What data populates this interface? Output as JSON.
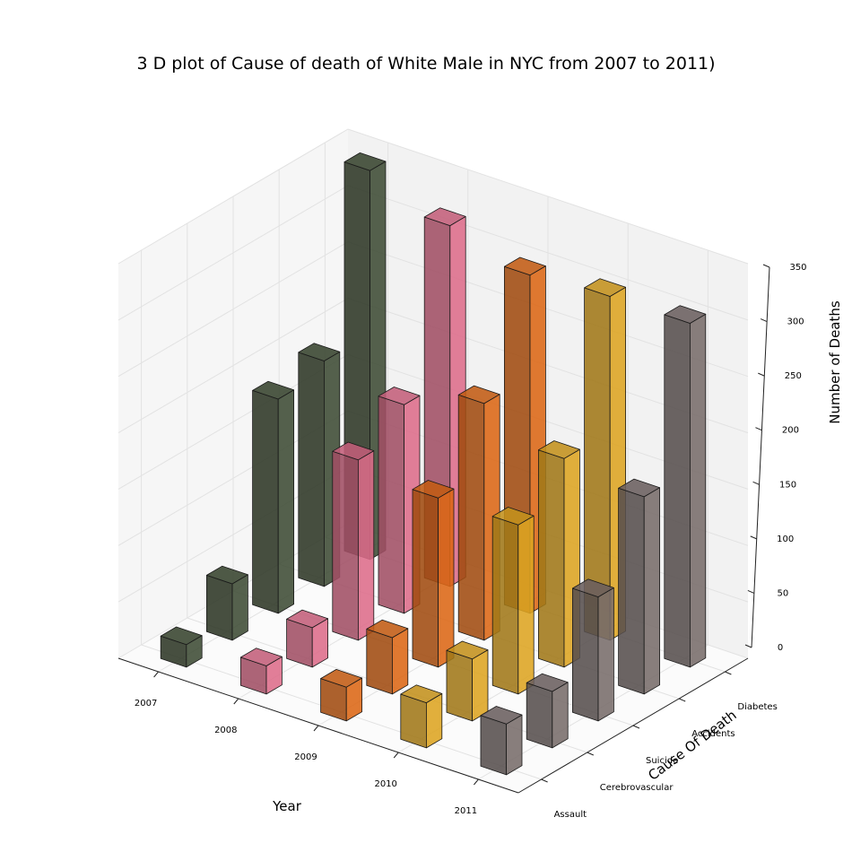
{
  "chart_data": {
    "type": "bar",
    "title": "3 D plot of Cause of death of White Male in NYC from 2007 to 2011)",
    "xlabel": "Year",
    "ylabel": "Cause Of Death",
    "zlabel": "Number of Deaths",
    "x_categories": [
      "2007",
      "2008",
      "2009",
      "2010",
      "2011"
    ],
    "y_categories": [
      "Assault",
      "Cerebrovascular",
      "Suicide",
      "Accidents",
      "Diabetes"
    ],
    "zlim": [
      0,
      350
    ],
    "z_ticks": [
      "0",
      "50",
      "100",
      "150",
      "200",
      "250",
      "300",
      "350"
    ],
    "grid": true,
    "series": [
      {
        "name": "2007",
        "color": "#3d4a33",
        "values": [
          20,
          50,
          190,
          200,
          345
        ]
      },
      {
        "name": "2008",
        "color": "#d96a87",
        "values": [
          25,
          35,
          160,
          185,
          320
        ]
      },
      {
        "name": "2009",
        "color": "#d86515",
        "values": [
          30,
          50,
          150,
          210,
          300
        ]
      },
      {
        "name": "2010",
        "color": "#d9a120",
        "values": [
          40,
          55,
          150,
          185,
          305
        ]
      },
      {
        "name": "2011",
        "color": "#766a68",
        "values": [
          45,
          50,
          110,
          175,
          305
        ]
      }
    ]
  }
}
